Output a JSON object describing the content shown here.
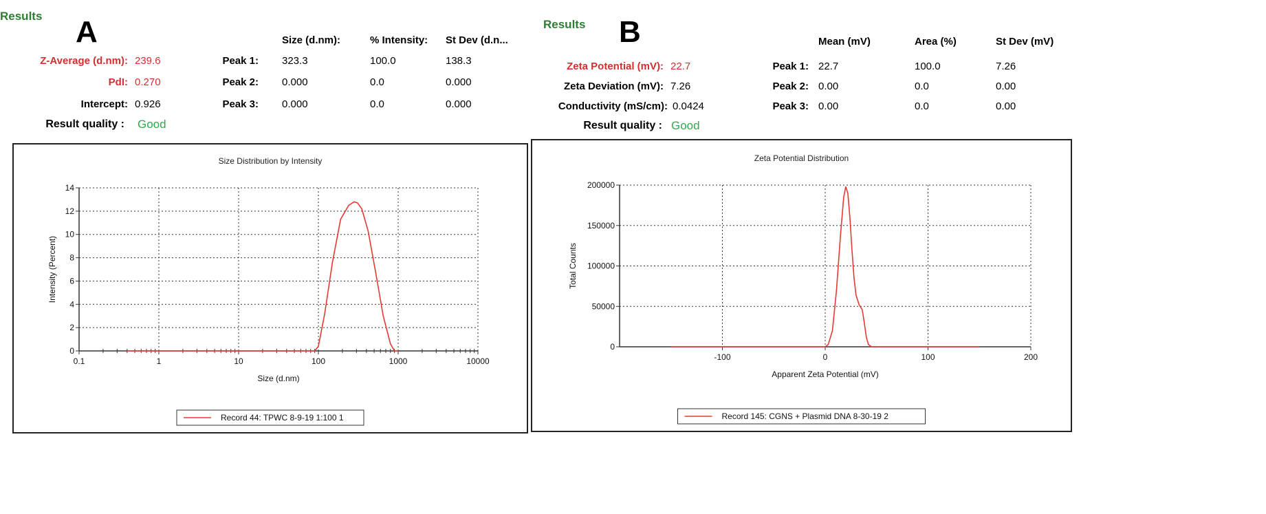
{
  "panels": [
    {
      "results_label": "Results",
      "letter": "A",
      "columns": [
        "Size (d.nm):",
        "% Intensity:",
        "St Dev (d.n..."
      ],
      "summary": [
        {
          "label": "Z-Average (d.nm):",
          "value": "239.6",
          "highlight": true
        },
        {
          "label": "PdI:",
          "value": "0.270",
          "highlight": true
        },
        {
          "label": "Intercept:",
          "value": "0.926",
          "highlight": false
        }
      ],
      "quality_label": "Result quality :",
      "quality_value": "Good",
      "peaks": [
        {
          "label": "Peak 1:",
          "values": [
            "323.3",
            "100.0",
            "138.3"
          ]
        },
        {
          "label": "Peak 2:",
          "values": [
            "0.000",
            "0.0",
            "0.000"
          ]
        },
        {
          "label": "Peak 3:",
          "values": [
            "0.000",
            "0.0",
            "0.000"
          ]
        }
      ]
    },
    {
      "results_label": "Results",
      "letter": "B",
      "columns": [
        "Mean (mV)",
        "Area (%)",
        "St Dev (mV)"
      ],
      "summary": [
        {
          "label": "Zeta Potential (mV):",
          "value": "22.7",
          "highlight": true
        },
        {
          "label": "Zeta Deviation (mV):",
          "value": "7.26",
          "highlight": false
        },
        {
          "label": "Conductivity (mS/cm):",
          "value": "0.0424",
          "highlight": false
        }
      ],
      "quality_label": "Result quality :",
      "quality_value": "Good",
      "peaks": [
        {
          "label": "Peak 1:",
          "values": [
            "22.7",
            "100.0",
            "7.26"
          ]
        },
        {
          "label": "Peak 2:",
          "values": [
            "0.00",
            "0.0",
            "0.00"
          ]
        },
        {
          "label": "Peak 3:",
          "values": [
            "0.00",
            "0.0",
            "0.00"
          ]
        }
      ]
    }
  ],
  "colors": {
    "red": "#d32f2f",
    "green": "#2eaa4a",
    "series": "#e53935",
    "results": "#2e7d32"
  },
  "chart_data": [
    {
      "type": "line",
      "title": "Size Distribution by Intensity",
      "xlabel": "Size (d.nm)",
      "ylabel": "Intensity (Percent)",
      "xscale": "log",
      "xlim": [
        0.1,
        10000
      ],
      "ylim": [
        0,
        14
      ],
      "xticks": [
        "0.1",
        "1",
        "10",
        "100",
        "1000",
        "10000"
      ],
      "yticks": [
        "0",
        "2",
        "4",
        "6",
        "8",
        "10",
        "12",
        "14"
      ],
      "grid": true,
      "legend_position": "bottom-center",
      "series": [
        {
          "name": "Record 44: TPWC 8-9-19 1:100 1",
          "x": [
            0.4,
            1,
            10,
            50,
            90,
            100,
            120,
            150,
            190,
            240,
            280,
            310,
            350,
            420,
            520,
            650,
            800,
            900,
            1000
          ],
          "y": [
            0,
            0,
            0,
            0,
            0,
            0.4,
            3.2,
            7.6,
            11.3,
            12.5,
            12.8,
            12.7,
            12.2,
            10.3,
            6.8,
            3.0,
            0.6,
            0,
            0
          ]
        }
      ]
    },
    {
      "type": "line",
      "title": "Zeta Potential Distribution",
      "xlabel": "Apparent Zeta Potential (mV)",
      "ylabel": "Total Counts",
      "xlim": [
        -200,
        200
      ],
      "ylim": [
        0,
        200000
      ],
      "xticks": [
        "-100",
        "0",
        "100",
        "200"
      ],
      "yticks": [
        "0",
        "50000",
        "100000",
        "150000",
        "200000"
      ],
      "grid": true,
      "legend_position": "bottom-center",
      "series": [
        {
          "name": "Record 145: CGNS + Plasmid DNA 8-30-19 2",
          "x": [
            -150,
            0,
            3,
            7,
            11,
            15,
            18,
            20,
            22,
            24,
            26,
            28,
            30,
            33,
            36,
            38,
            40,
            42,
            45,
            150
          ],
          "y": [
            0,
            0,
            3000,
            20000,
            70000,
            140000,
            185000,
            198000,
            190000,
            160000,
            120000,
            85000,
            64000,
            52000,
            46000,
            30000,
            12000,
            3000,
            0,
            0
          ]
        }
      ]
    }
  ]
}
